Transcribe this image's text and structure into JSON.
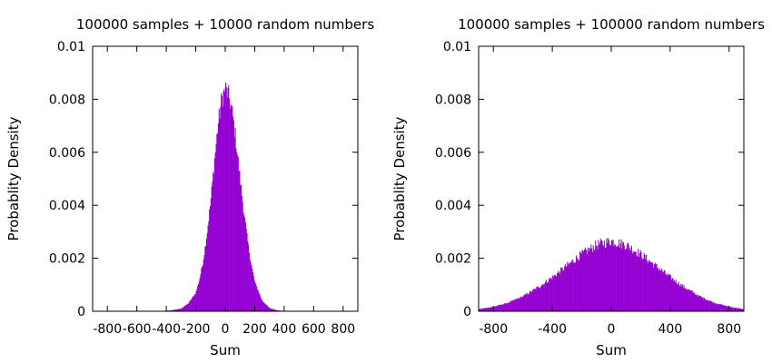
{
  "chart_data": [
    {
      "type": "bar",
      "title": "100000 samples + 10000 random numbers",
      "xlabel": "Sum",
      "ylabel": "Probablity Density",
      "xlim": [
        -900,
        900
      ],
      "ylim": [
        0,
        0.01
      ],
      "xticks": [
        -800,
        -600,
        -400,
        -200,
        0,
        200,
        400,
        600,
        800
      ],
      "xtick_labels": [
        "-800",
        "-600",
        "-400",
        "-200",
        "0",
        "200",
        "400",
        "600",
        "800"
      ],
      "yticks": [
        0,
        0.002,
        0.004,
        0.006,
        0.008,
        0.01
      ],
      "ytick_labels": [
        "0",
        "0.002",
        "0.004",
        "0.006",
        "0.008",
        "0.01"
      ],
      "color": "#9400d3",
      "grid": false,
      "bin_width": 5,
      "x": [
        -450,
        -400,
        -350,
        -300,
        -250,
        -200,
        -175,
        -150,
        -125,
        -100,
        -75,
        -50,
        -25,
        0,
        25,
        50,
        75,
        100,
        125,
        150,
        175,
        200,
        250,
        300,
        350,
        400,
        450
      ],
      "values": [
        0,
        2e-05,
        5e-05,
        0.0001,
        0.0003,
        0.0007,
        0.0012,
        0.0019,
        0.0029,
        0.0041,
        0.0056,
        0.007,
        0.008,
        0.0084,
        0.0081,
        0.0074,
        0.0063,
        0.005,
        0.0038,
        0.0027,
        0.0018,
        0.0011,
        0.0004,
        0.00012,
        4e-05,
        1e-05,
        0
      ]
    },
    {
      "type": "bar",
      "title": "100000 samples + 100000 random numbers",
      "xlabel": "Sum",
      "ylabel": "Probablity Density",
      "xlim": [
        -900,
        900
      ],
      "ylim": [
        0,
        0.01
      ],
      "xticks": [
        -800,
        -400,
        0,
        400,
        800
      ],
      "xtick_labels": [
        "-800",
        "-400",
        "0",
        "400",
        "800"
      ],
      "yticks": [
        0,
        0.002,
        0.004,
        0.006,
        0.008,
        0.01
      ],
      "ytick_labels": [
        "0",
        "0.002",
        "0.004",
        "0.006",
        "0.008",
        "0.01"
      ],
      "color": "#9400d3",
      "grid": false,
      "bin_width": 5,
      "x": [
        -900,
        -800,
        -700,
        -600,
        -500,
        -400,
        -300,
        -200,
        -100,
        0,
        100,
        200,
        300,
        400,
        500,
        600,
        700,
        800,
        900
      ],
      "values": [
        8e-05,
        0.00017,
        0.00032,
        0.00056,
        0.00089,
        0.00128,
        0.00172,
        0.00215,
        0.0025,
        0.00265,
        0.0025,
        0.00215,
        0.00172,
        0.00128,
        0.00089,
        0.00056,
        0.00032,
        0.00017,
        8e-05
      ]
    }
  ]
}
